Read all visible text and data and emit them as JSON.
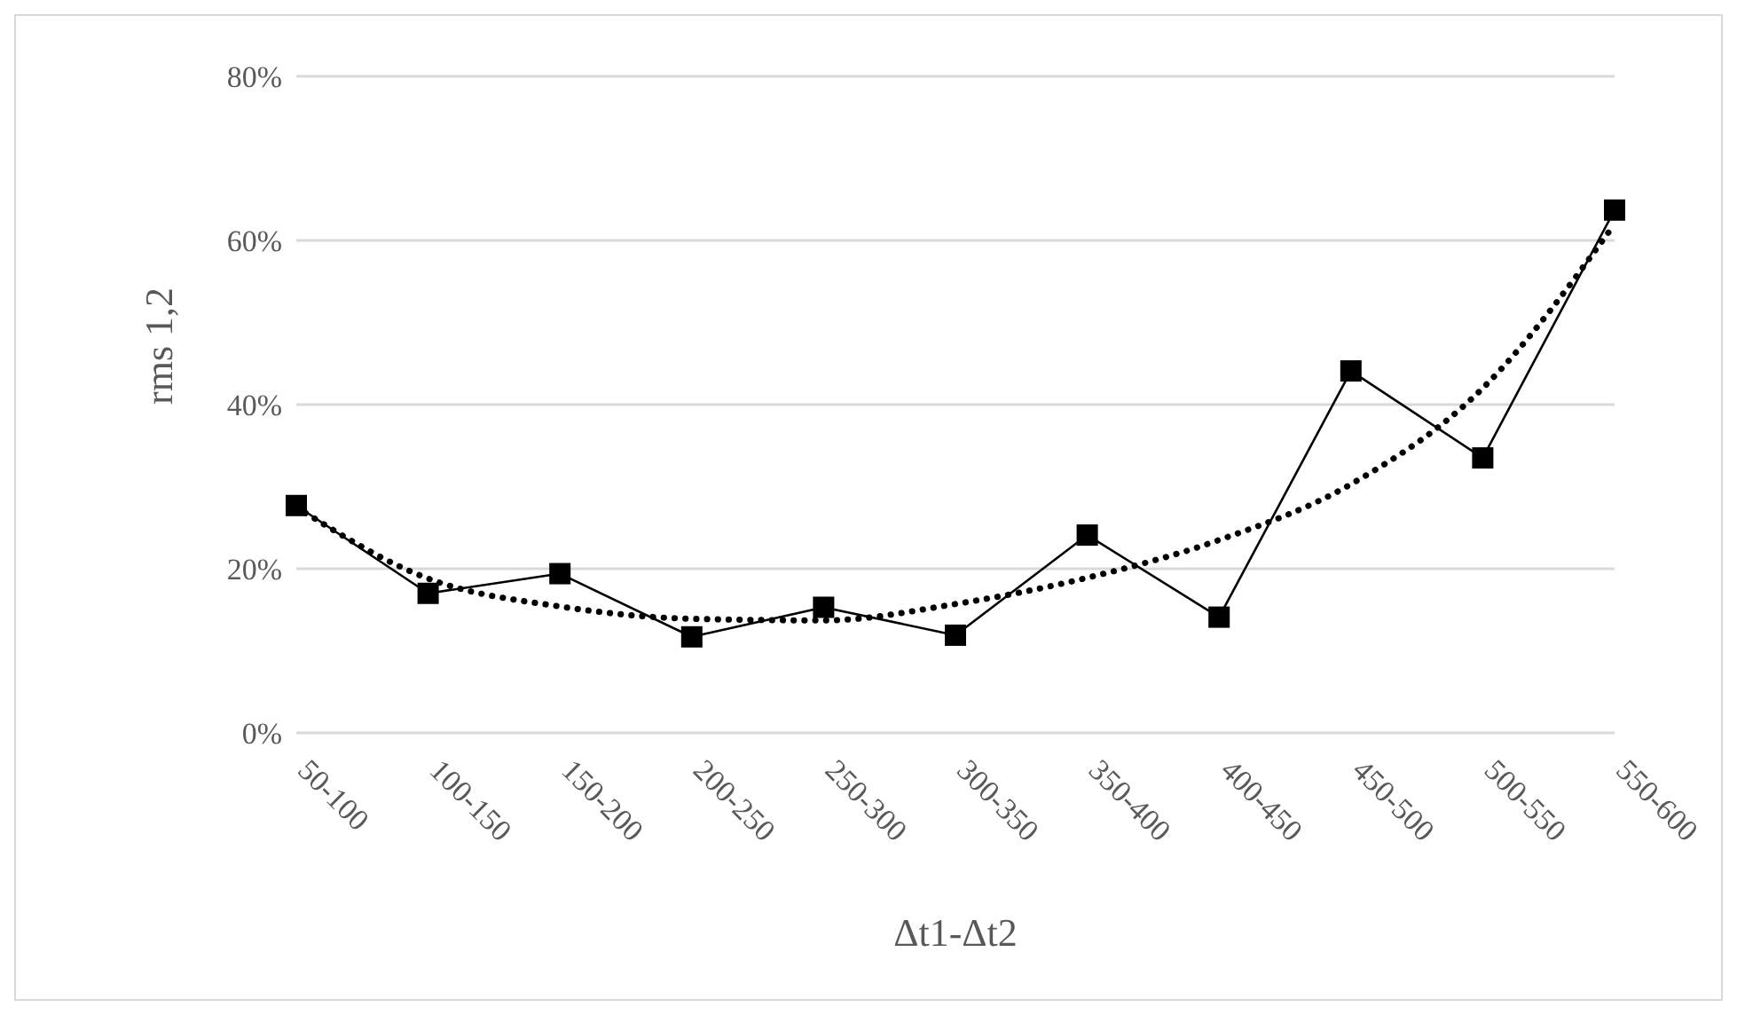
{
  "chart_data": {
    "type": "line",
    "xlabel": "Δt1-Δt2",
    "ylabel": "rms 1,2",
    "categories": [
      "50-100",
      "100-150",
      "150-200",
      "200-250",
      "250-300",
      "300-350",
      "350-400",
      "400-450",
      "450-500",
      "500-550",
      "550-600"
    ],
    "series": [
      {
        "color": "#000000",
        "marker": "square",
        "line_style": "solid",
        "values": [
          27.7,
          17.0,
          19.4,
          11.7,
          15.3,
          11.9,
          24.1,
          14.1,
          44.1,
          33.5,
          63.7
        ]
      },
      {
        "type": "line",
        "color": "#000000",
        "marker": "none",
        "line_style": "dotted",
        "values": [
          27.5,
          18.8,
          15.4,
          13.9,
          13.7,
          15.7,
          18.9,
          23.5,
          30.3,
          42,
          62
        ]
      }
    ],
    "ylim": [
      0,
      80
    ],
    "yticks": [
      {
        "value": 0,
        "label": "0%"
      },
      {
        "value": 20,
        "label": "20%"
      },
      {
        "value": 40,
        "label": "40%"
      },
      {
        "value": 60,
        "label": "60%"
      },
      {
        "value": 80,
        "label": "80%"
      }
    ],
    "grid": "y"
  }
}
